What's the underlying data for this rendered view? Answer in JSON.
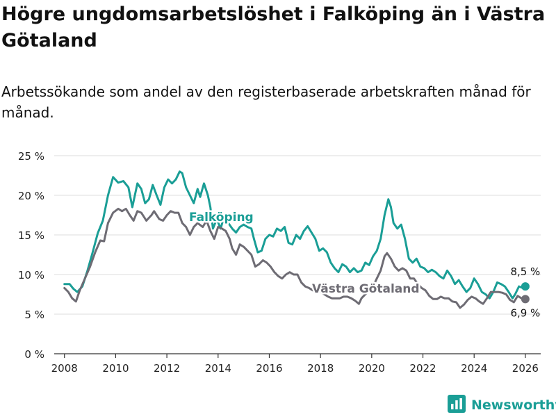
{
  "title": "Högre ungdomsarbetslöshet i Falköping än i Västra Götaland",
  "subtitle": "Arbetssökande som andel av den registerbaserade arbetskraften månad för månad.",
  "brand": {
    "name": "Newsworthy",
    "icon": "bar-chart-icon",
    "color": "#1a9e96"
  },
  "colors": {
    "falkoping": "#1a9e96",
    "vastra": "#6e6c74",
    "grid": "#dcdcdc",
    "axis": "#333333"
  },
  "chart_data": {
    "type": "line",
    "title": "Högre ungdomsarbetslöshet i Falköping än i Västra Götaland",
    "xlabel": "",
    "ylabel": "",
    "ylim": [
      0,
      25
    ],
    "xlim": [
      2007.6,
      2026.6
    ],
    "y_ticks": [
      0,
      5,
      10,
      15,
      20,
      25
    ],
    "y_tick_labels": [
      "0 %",
      "5 %",
      "10 %",
      "15 %",
      "20 %",
      "25 %"
    ],
    "x_ticks": [
      2008,
      2010,
      2012,
      2014,
      2016,
      2018,
      2020,
      2022,
      2024,
      2026
    ],
    "x_tick_labels": [
      "2008",
      "2010",
      "2012",
      "2014",
      "2016",
      "2018",
      "2020",
      "2022",
      "2024",
      "2026"
    ],
    "series": [
      {
        "name": "Falköping",
        "label": "Falköping",
        "end_label": "8,5 %",
        "end_value": 8.5,
        "points": [
          [
            2008.0,
            8.8
          ],
          [
            2008.2,
            8.8
          ],
          [
            2008.35,
            8.2
          ],
          [
            2008.5,
            7.8
          ],
          [
            2008.7,
            8.5
          ],
          [
            2008.9,
            10.5
          ],
          [
            2009.1,
            12.8
          ],
          [
            2009.3,
            15.2
          ],
          [
            2009.5,
            16.8
          ],
          [
            2009.7,
            20.0
          ],
          [
            2009.9,
            22.3
          ],
          [
            2010.1,
            21.6
          ],
          [
            2010.3,
            21.8
          ],
          [
            2010.5,
            21.0
          ],
          [
            2010.65,
            18.5
          ],
          [
            2010.85,
            21.5
          ],
          [
            2011.0,
            20.8
          ],
          [
            2011.15,
            19.0
          ],
          [
            2011.3,
            19.5
          ],
          [
            2011.45,
            21.3
          ],
          [
            2011.6,
            20.0
          ],
          [
            2011.75,
            18.8
          ],
          [
            2011.9,
            21.0
          ],
          [
            2012.05,
            22.0
          ],
          [
            2012.2,
            21.5
          ],
          [
            2012.35,
            22.0
          ],
          [
            2012.5,
            23.0
          ],
          [
            2012.6,
            22.8
          ],
          [
            2012.75,
            21.0
          ],
          [
            2012.9,
            20.0
          ],
          [
            2013.05,
            19.0
          ],
          [
            2013.2,
            20.8
          ],
          [
            2013.3,
            19.8
          ],
          [
            2013.45,
            21.5
          ],
          [
            2013.6,
            20.0
          ],
          [
            2013.7,
            18.5
          ],
          [
            2013.8,
            15.8
          ],
          [
            2013.95,
            17.0
          ],
          [
            2014.1,
            15.8
          ],
          [
            2014.25,
            17.5
          ],
          [
            2014.4,
            16.5
          ],
          [
            2014.55,
            15.8
          ],
          [
            2014.7,
            15.3
          ],
          [
            2014.85,
            16.0
          ],
          [
            2015.0,
            16.3
          ],
          [
            2015.15,
            16.0
          ],
          [
            2015.3,
            15.8
          ],
          [
            2015.4,
            14.5
          ],
          [
            2015.55,
            12.8
          ],
          [
            2015.7,
            13.0
          ],
          [
            2015.85,
            14.5
          ],
          [
            2016.0,
            15.0
          ],
          [
            2016.15,
            14.8
          ],
          [
            2016.3,
            15.8
          ],
          [
            2016.45,
            15.5
          ],
          [
            2016.6,
            16.0
          ],
          [
            2016.75,
            14.0
          ],
          [
            2016.9,
            13.8
          ],
          [
            2017.05,
            15.0
          ],
          [
            2017.2,
            14.5
          ],
          [
            2017.35,
            15.5
          ],
          [
            2017.5,
            16.1
          ],
          [
            2017.65,
            15.3
          ],
          [
            2017.8,
            14.5
          ],
          [
            2017.95,
            13.0
          ],
          [
            2018.1,
            13.3
          ],
          [
            2018.25,
            12.8
          ],
          [
            2018.4,
            11.5
          ],
          [
            2018.55,
            10.8
          ],
          [
            2018.7,
            10.3
          ],
          [
            2018.85,
            11.3
          ],
          [
            2019.0,
            11.0
          ],
          [
            2019.15,
            10.3
          ],
          [
            2019.3,
            10.8
          ],
          [
            2019.45,
            10.3
          ],
          [
            2019.6,
            10.5
          ],
          [
            2019.75,
            11.5
          ],
          [
            2019.9,
            11.2
          ],
          [
            2020.05,
            12.3
          ],
          [
            2020.2,
            13.0
          ],
          [
            2020.35,
            14.5
          ],
          [
            2020.5,
            17.5
          ],
          [
            2020.65,
            19.5
          ],
          [
            2020.75,
            18.5
          ],
          [
            2020.85,
            16.5
          ],
          [
            2021.0,
            15.8
          ],
          [
            2021.15,
            16.3
          ],
          [
            2021.3,
            14.5
          ],
          [
            2021.45,
            12.0
          ],
          [
            2021.6,
            11.5
          ],
          [
            2021.75,
            12.0
          ],
          [
            2021.9,
            11.0
          ],
          [
            2022.05,
            10.8
          ],
          [
            2022.2,
            10.3
          ],
          [
            2022.35,
            10.6
          ],
          [
            2022.5,
            10.3
          ],
          [
            2022.65,
            9.8
          ],
          [
            2022.8,
            9.5
          ],
          [
            2022.95,
            10.5
          ],
          [
            2023.1,
            9.8
          ],
          [
            2023.25,
            8.8
          ],
          [
            2023.4,
            9.3
          ],
          [
            2023.55,
            8.5
          ],
          [
            2023.7,
            7.8
          ],
          [
            2023.85,
            8.3
          ],
          [
            2024.0,
            9.5
          ],
          [
            2024.15,
            8.8
          ],
          [
            2024.3,
            7.8
          ],
          [
            2024.45,
            7.5
          ],
          [
            2024.6,
            7.0
          ],
          [
            2024.75,
            7.8
          ],
          [
            2024.9,
            9.0
          ],
          [
            2025.05,
            8.8
          ],
          [
            2025.2,
            8.5
          ],
          [
            2025.35,
            7.8
          ],
          [
            2025.5,
            7.0
          ],
          [
            2025.6,
            7.5
          ],
          [
            2025.75,
            8.5
          ],
          [
            2025.9,
            8.3
          ],
          [
            2026.0,
            8.5
          ]
        ]
      },
      {
        "name": "Västra Götaland",
        "label": "Västra Götaland",
        "end_label": "6,9 %",
        "end_value": 6.9,
        "points": [
          [
            2008.0,
            8.3
          ],
          [
            2008.15,
            7.8
          ],
          [
            2008.3,
            7.0
          ],
          [
            2008.45,
            6.6
          ],
          [
            2008.6,
            8.0
          ],
          [
            2008.8,
            9.5
          ],
          [
            2009.0,
            11.0
          ],
          [
            2009.2,
            12.8
          ],
          [
            2009.4,
            14.3
          ],
          [
            2009.55,
            14.2
          ],
          [
            2009.7,
            16.5
          ],
          [
            2009.9,
            17.8
          ],
          [
            2010.1,
            18.3
          ],
          [
            2010.25,
            18.0
          ],
          [
            2010.4,
            18.3
          ],
          [
            2010.55,
            17.5
          ],
          [
            2010.7,
            16.8
          ],
          [
            2010.85,
            18.0
          ],
          [
            2011.0,
            17.8
          ],
          [
            2011.2,
            16.8
          ],
          [
            2011.4,
            17.5
          ],
          [
            2011.5,
            18.0
          ],
          [
            2011.7,
            17.0
          ],
          [
            2011.85,
            16.8
          ],
          [
            2012.0,
            17.5
          ],
          [
            2012.15,
            18.0
          ],
          [
            2012.3,
            17.8
          ],
          [
            2012.45,
            17.8
          ],
          [
            2012.6,
            16.5
          ],
          [
            2012.75,
            16.0
          ],
          [
            2012.9,
            15.0
          ],
          [
            2013.05,
            16.0
          ],
          [
            2013.2,
            16.5
          ],
          [
            2013.4,
            16.0
          ],
          [
            2013.55,
            16.8
          ],
          [
            2013.7,
            15.5
          ],
          [
            2013.85,
            14.5
          ],
          [
            2014.0,
            16.0
          ],
          [
            2014.15,
            15.8
          ],
          [
            2014.3,
            15.5
          ],
          [
            2014.45,
            14.5
          ],
          [
            2014.55,
            13.3
          ],
          [
            2014.7,
            12.5
          ],
          [
            2014.85,
            13.8
          ],
          [
            2015.0,
            13.5
          ],
          [
            2015.15,
            13.0
          ],
          [
            2015.3,
            12.5
          ],
          [
            2015.45,
            11.0
          ],
          [
            2015.6,
            11.3
          ],
          [
            2015.75,
            11.8
          ],
          [
            2015.9,
            11.5
          ],
          [
            2016.05,
            11.0
          ],
          [
            2016.2,
            10.3
          ],
          [
            2016.35,
            9.8
          ],
          [
            2016.5,
            9.5
          ],
          [
            2016.65,
            10.0
          ],
          [
            2016.8,
            10.3
          ],
          [
            2016.95,
            10.0
          ],
          [
            2017.1,
            10.0
          ],
          [
            2017.25,
            9.0
          ],
          [
            2017.4,
            8.5
          ],
          [
            2017.55,
            8.3
          ],
          [
            2017.7,
            8.0
          ],
          [
            2017.85,
            7.8
          ],
          [
            2018.0,
            7.8
          ],
          [
            2018.15,
            7.5
          ],
          [
            2018.3,
            7.2
          ],
          [
            2018.45,
            7.0
          ],
          [
            2018.6,
            7.0
          ],
          [
            2018.75,
            7.0
          ],
          [
            2018.9,
            7.2
          ],
          [
            2019.05,
            7.2
          ],
          [
            2019.2,
            7.0
          ],
          [
            2019.35,
            6.7
          ],
          [
            2019.5,
            6.3
          ],
          [
            2019.6,
            7.0
          ],
          [
            2019.75,
            7.5
          ],
          [
            2019.9,
            8.0
          ],
          [
            2020.05,
            8.5
          ],
          [
            2020.2,
            9.5
          ],
          [
            2020.35,
            10.5
          ],
          [
            2020.5,
            12.3
          ],
          [
            2020.6,
            12.7
          ],
          [
            2020.75,
            12.0
          ],
          [
            2020.9,
            11.0
          ],
          [
            2021.05,
            10.5
          ],
          [
            2021.2,
            10.8
          ],
          [
            2021.35,
            10.5
          ],
          [
            2021.5,
            9.5
          ],
          [
            2021.65,
            9.5
          ],
          [
            2021.8,
            8.8
          ],
          [
            2021.95,
            8.3
          ],
          [
            2022.1,
            8.0
          ],
          [
            2022.25,
            7.3
          ],
          [
            2022.4,
            6.9
          ],
          [
            2022.55,
            6.9
          ],
          [
            2022.7,
            7.2
          ],
          [
            2022.85,
            7.0
          ],
          [
            2023.0,
            7.0
          ],
          [
            2023.15,
            6.6
          ],
          [
            2023.3,
            6.5
          ],
          [
            2023.45,
            5.8
          ],
          [
            2023.6,
            6.2
          ],
          [
            2023.75,
            6.8
          ],
          [
            2023.9,
            7.2
          ],
          [
            2024.05,
            7.0
          ],
          [
            2024.2,
            6.6
          ],
          [
            2024.35,
            6.3
          ],
          [
            2024.5,
            7.0
          ],
          [
            2024.65,
            7.8
          ],
          [
            2024.8,
            7.8
          ],
          [
            2024.95,
            7.8
          ],
          [
            2025.1,
            7.7
          ],
          [
            2025.25,
            7.5
          ],
          [
            2025.4,
            6.8
          ],
          [
            2025.55,
            6.5
          ],
          [
            2025.7,
            7.3
          ],
          [
            2025.85,
            7.0
          ],
          [
            2026.0,
            6.9
          ]
        ]
      }
    ]
  }
}
